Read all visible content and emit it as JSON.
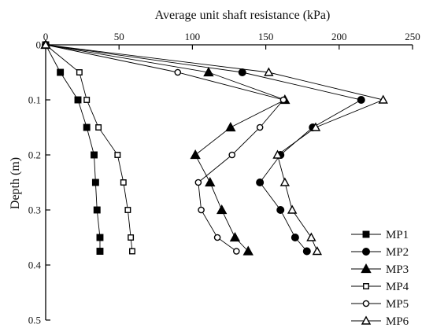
{
  "chart_data": {
    "type": "line",
    "title": "",
    "xlabel": "Average unit shaft resistance (kPa)",
    "ylabel": "Depth (m)",
    "xlim": [
      0,
      250
    ],
    "ylim": [
      0,
      0.5
    ],
    "y_inverted": true,
    "x_axis_position": "top",
    "x_ticks": [
      0,
      50,
      100,
      150,
      200,
      250
    ],
    "y_ticks": [
      0,
      0.1,
      0.2,
      0.3,
      0.4,
      0.5
    ],
    "x_tick_labels": [
      "0",
      "50",
      "100",
      "150",
      "200",
      "250"
    ],
    "y_tick_labels": [
      "0",
      "0.1",
      "0.2",
      "0.3",
      "0.4",
      "0.5"
    ],
    "grid": false,
    "legend_position": "bottom-right",
    "line_color": "#000000",
    "series": [
      {
        "name": "MP1",
        "marker": "square-filled",
        "x": [
          0,
          10,
          22,
          28,
          33,
          34,
          35,
          37,
          37
        ],
        "y": [
          0,
          0.05,
          0.1,
          0.15,
          0.2,
          0.25,
          0.3,
          0.35,
          0.375
        ]
      },
      {
        "name": "MP2",
        "marker": "circle-filled",
        "x": [
          0,
          134,
          215,
          182,
          160,
          146,
          160,
          170,
          178
        ],
        "y": [
          0,
          0.05,
          0.1,
          0.15,
          0.2,
          0.25,
          0.3,
          0.35,
          0.375
        ]
      },
      {
        "name": "MP3",
        "marker": "triangle-filled",
        "x": [
          0,
          111,
          163,
          126,
          102,
          112,
          120,
          129,
          138
        ],
        "y": [
          0,
          0.05,
          0.1,
          0.15,
          0.2,
          0.25,
          0.3,
          0.35,
          0.375
        ]
      },
      {
        "name": "MP4",
        "marker": "square-open",
        "x": [
          0,
          23,
          28,
          36,
          49,
          53,
          56,
          58,
          59
        ],
        "y": [
          0,
          0.05,
          0.1,
          0.15,
          0.2,
          0.25,
          0.3,
          0.35,
          0.375
        ]
      },
      {
        "name": "MP5",
        "marker": "circle-open",
        "x": [
          0,
          90,
          162,
          146,
          127,
          104,
          106,
          117,
          130
        ],
        "y": [
          0,
          0.05,
          0.1,
          0.15,
          0.2,
          0.25,
          0.3,
          0.35,
          0.375
        ]
      },
      {
        "name": "MP6",
        "marker": "triangle-open",
        "x": [
          0,
          152,
          230,
          184,
          158,
          163,
          168,
          181,
          185
        ],
        "y": [
          0,
          0.05,
          0.1,
          0.15,
          0.2,
          0.25,
          0.3,
          0.35,
          0.375
        ]
      }
    ]
  }
}
